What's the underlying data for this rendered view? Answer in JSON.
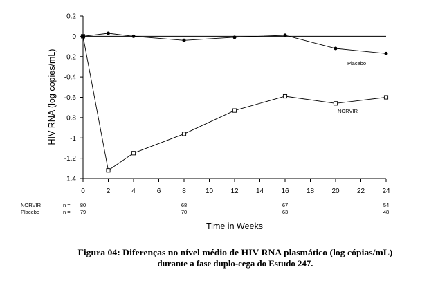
{
  "chart_data": {
    "type": "line",
    "xlabel": "Time in Weeks",
    "ylabel": "HIV RNA (log copies/mL)",
    "xlim": [
      0,
      24
    ],
    "ylim": [
      -1.4,
      0.2
    ],
    "xticks": [
      0,
      2,
      4,
      6,
      8,
      10,
      12,
      14,
      16,
      18,
      20,
      22,
      24
    ],
    "yticks": [
      0.2,
      0,
      -0.2,
      -0.4,
      -0.6,
      -0.8,
      -1,
      -1.2,
      -1.4
    ],
    "reference_line_y": 0,
    "grid": false,
    "legend": "inline-labels",
    "series": [
      {
        "name": "NORVIR",
        "marker": "open-square",
        "color": "#000000",
        "x": [
          0,
          2,
          4,
          8,
          12,
          16,
          20,
          24
        ],
        "y": [
          0,
          -1.32,
          -1.15,
          -0.96,
          -0.73,
          -0.59,
          -0.66,
          -0.6
        ]
      },
      {
        "name": "Placebo",
        "marker": "filled-circle",
        "color": "#000000",
        "x": [
          0,
          2,
          4,
          8,
          12,
          16,
          20,
          24
        ],
        "y": [
          0,
          0.03,
          0,
          -0.04,
          -0.01,
          0.01,
          -0.12,
          -0.17
        ]
      }
    ]
  },
  "n_table": {
    "weeks": [
      0,
      8,
      16,
      24
    ],
    "rows": [
      {
        "name": "NORVIR",
        "n_label": "n =",
        "values": [
          80,
          68,
          67,
          54
        ]
      },
      {
        "name": "Placebo",
        "n_label": "n =",
        "values": [
          79,
          70,
          63,
          48
        ]
      }
    ]
  },
  "caption": {
    "line1": "Figura 04: Diferenças no nível médio de HIV RNA plasmático (log cópias/mL)",
    "line2": "durante a fase duplo-cega do Estudo 247."
  }
}
